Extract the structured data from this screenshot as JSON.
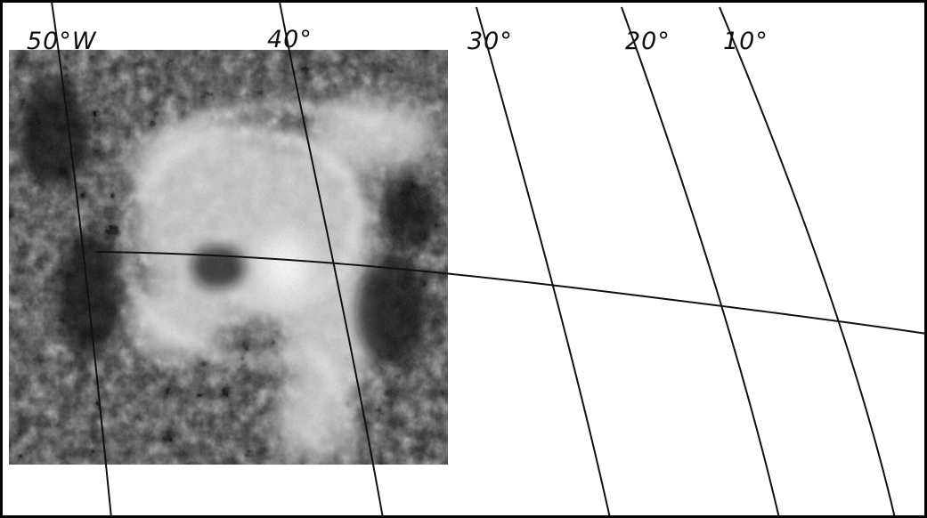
{
  "map": {
    "longitude_labels": [
      "50°W",
      "40°",
      "30°",
      "20°",
      "10°"
    ],
    "colors": {
      "background": "#ffffff",
      "grid_line": "#111111",
      "frame": "#000000"
    }
  },
  "satellite_image": {
    "subject": "cyclonic cloud system"
  }
}
